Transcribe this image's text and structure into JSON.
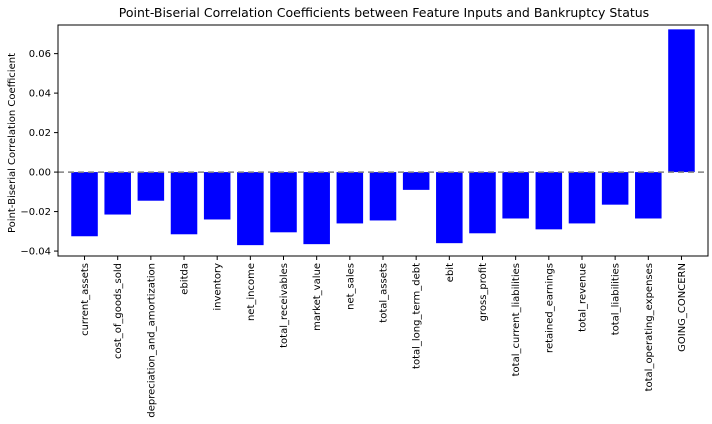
{
  "chart_data": {
    "type": "bar",
    "title": "Point-Biserial Correlation Coefficients between Feature Inputs and Bankruptcy Status",
    "xlabel": "",
    "ylabel": "Point-Biserial Correlation Coefficient",
    "categories": [
      "current_assets",
      "cost_of_goods_sold",
      "depreciation_and_amortization",
      "ebitda",
      "inventory",
      "net_income",
      "total_receivables",
      "market_value",
      "net_sales",
      "total_assets",
      "total_long_term_debt",
      "ebit",
      "gross_profit",
      "total_current_liabilities",
      "retained_earnings",
      "total_revenue",
      "total_liabilities",
      "total_operating_expenses",
      "GOING_CONCERN"
    ],
    "values": [
      -0.0325,
      -0.0215,
      -0.0145,
      -0.0315,
      -0.024,
      -0.037,
      -0.0305,
      -0.0365,
      -0.026,
      -0.0245,
      -0.009,
      -0.036,
      -0.031,
      -0.0235,
      -0.029,
      -0.026,
      -0.0165,
      -0.0235,
      0.0723
    ],
    "ylim": [
      -0.0425,
      0.0745
    ],
    "yticks": [
      -0.04,
      -0.02,
      0.0,
      0.02,
      0.04,
      0.06
    ],
    "ytick_labels": [
      "−0.04",
      "−0.02",
      "0.00",
      "0.02",
      "0.04",
      "0.06"
    ],
    "bar_color": "#0000ff",
    "reference_line": {
      "y": 0,
      "style": "dashed",
      "color": "#808080"
    },
    "grid": false,
    "legend": "none"
  }
}
